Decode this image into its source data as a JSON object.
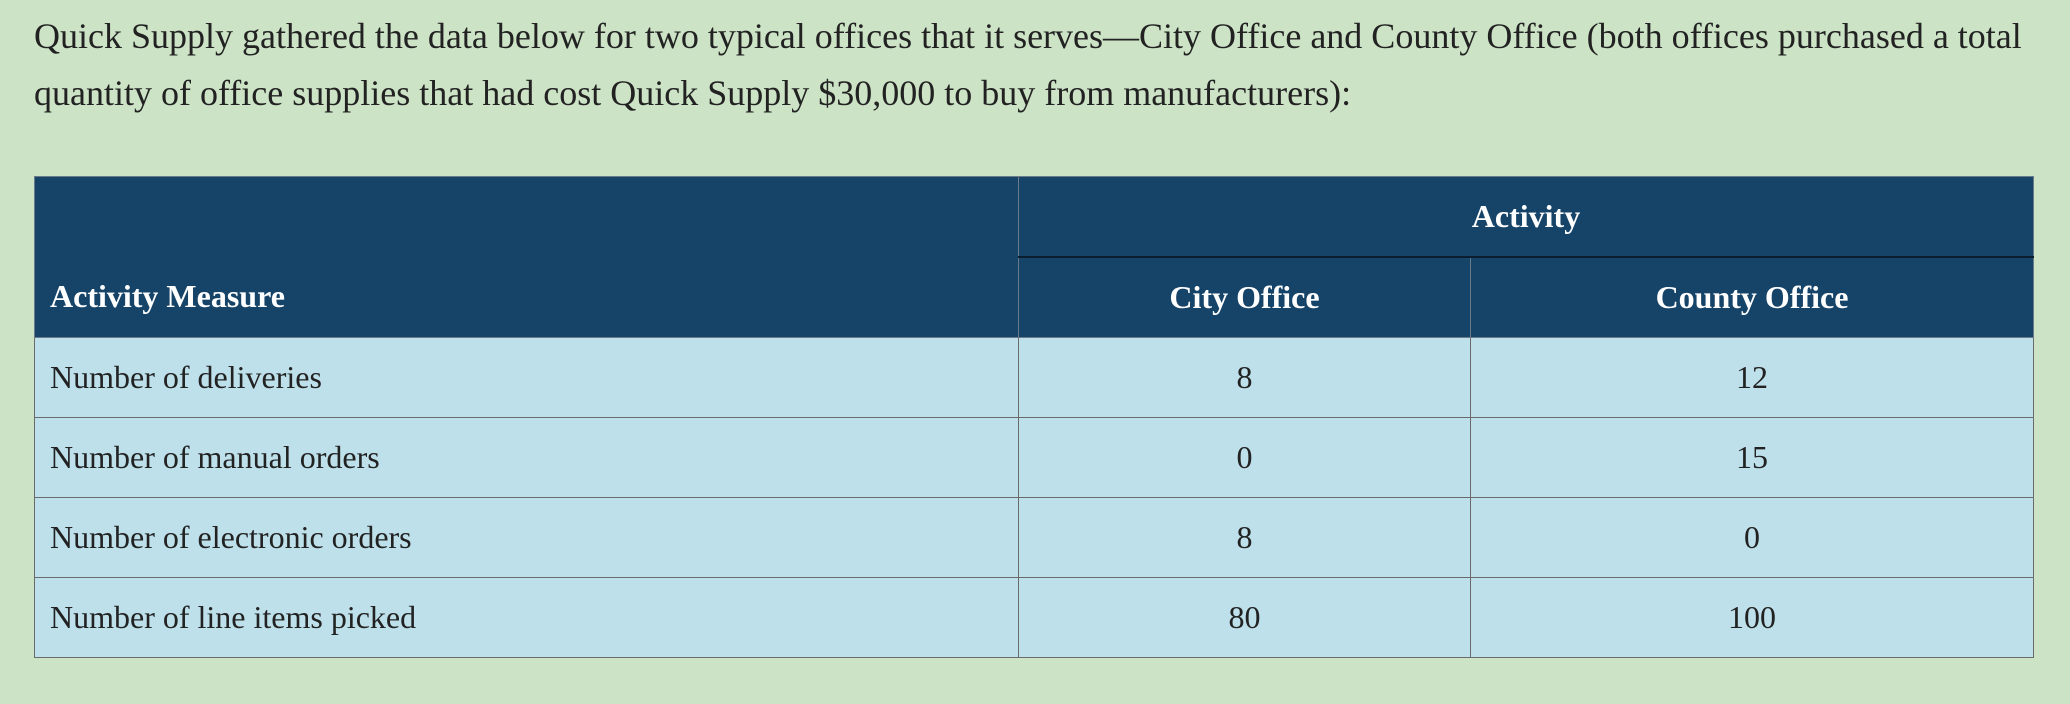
{
  "intro_text": "Quick Supply gathered the data below for two typical offices that it serves—City Office and County Office (both offices purchased a total quantity of office supplies that had cost Quick Supply $30,000 to buy from manufacturers):",
  "table": {
    "group_header": "Activity",
    "measure_header": "Activity Measure",
    "col_headers": [
      "City Office",
      "County Office"
    ],
    "rows": [
      {
        "measure": "Number of deliveries",
        "city": "8",
        "county": "12"
      },
      {
        "measure": "Number of manual orders",
        "city": "0",
        "county": "15"
      },
      {
        "measure": "Number of electronic orders",
        "city": "8",
        "county": "0"
      },
      {
        "measure": "Number of line items picked",
        "city": "80",
        "county": "100"
      }
    ]
  },
  "colors": {
    "page_background": "#cce3c6",
    "header_background": "#164469",
    "cell_background": "#bde0ea"
  }
}
